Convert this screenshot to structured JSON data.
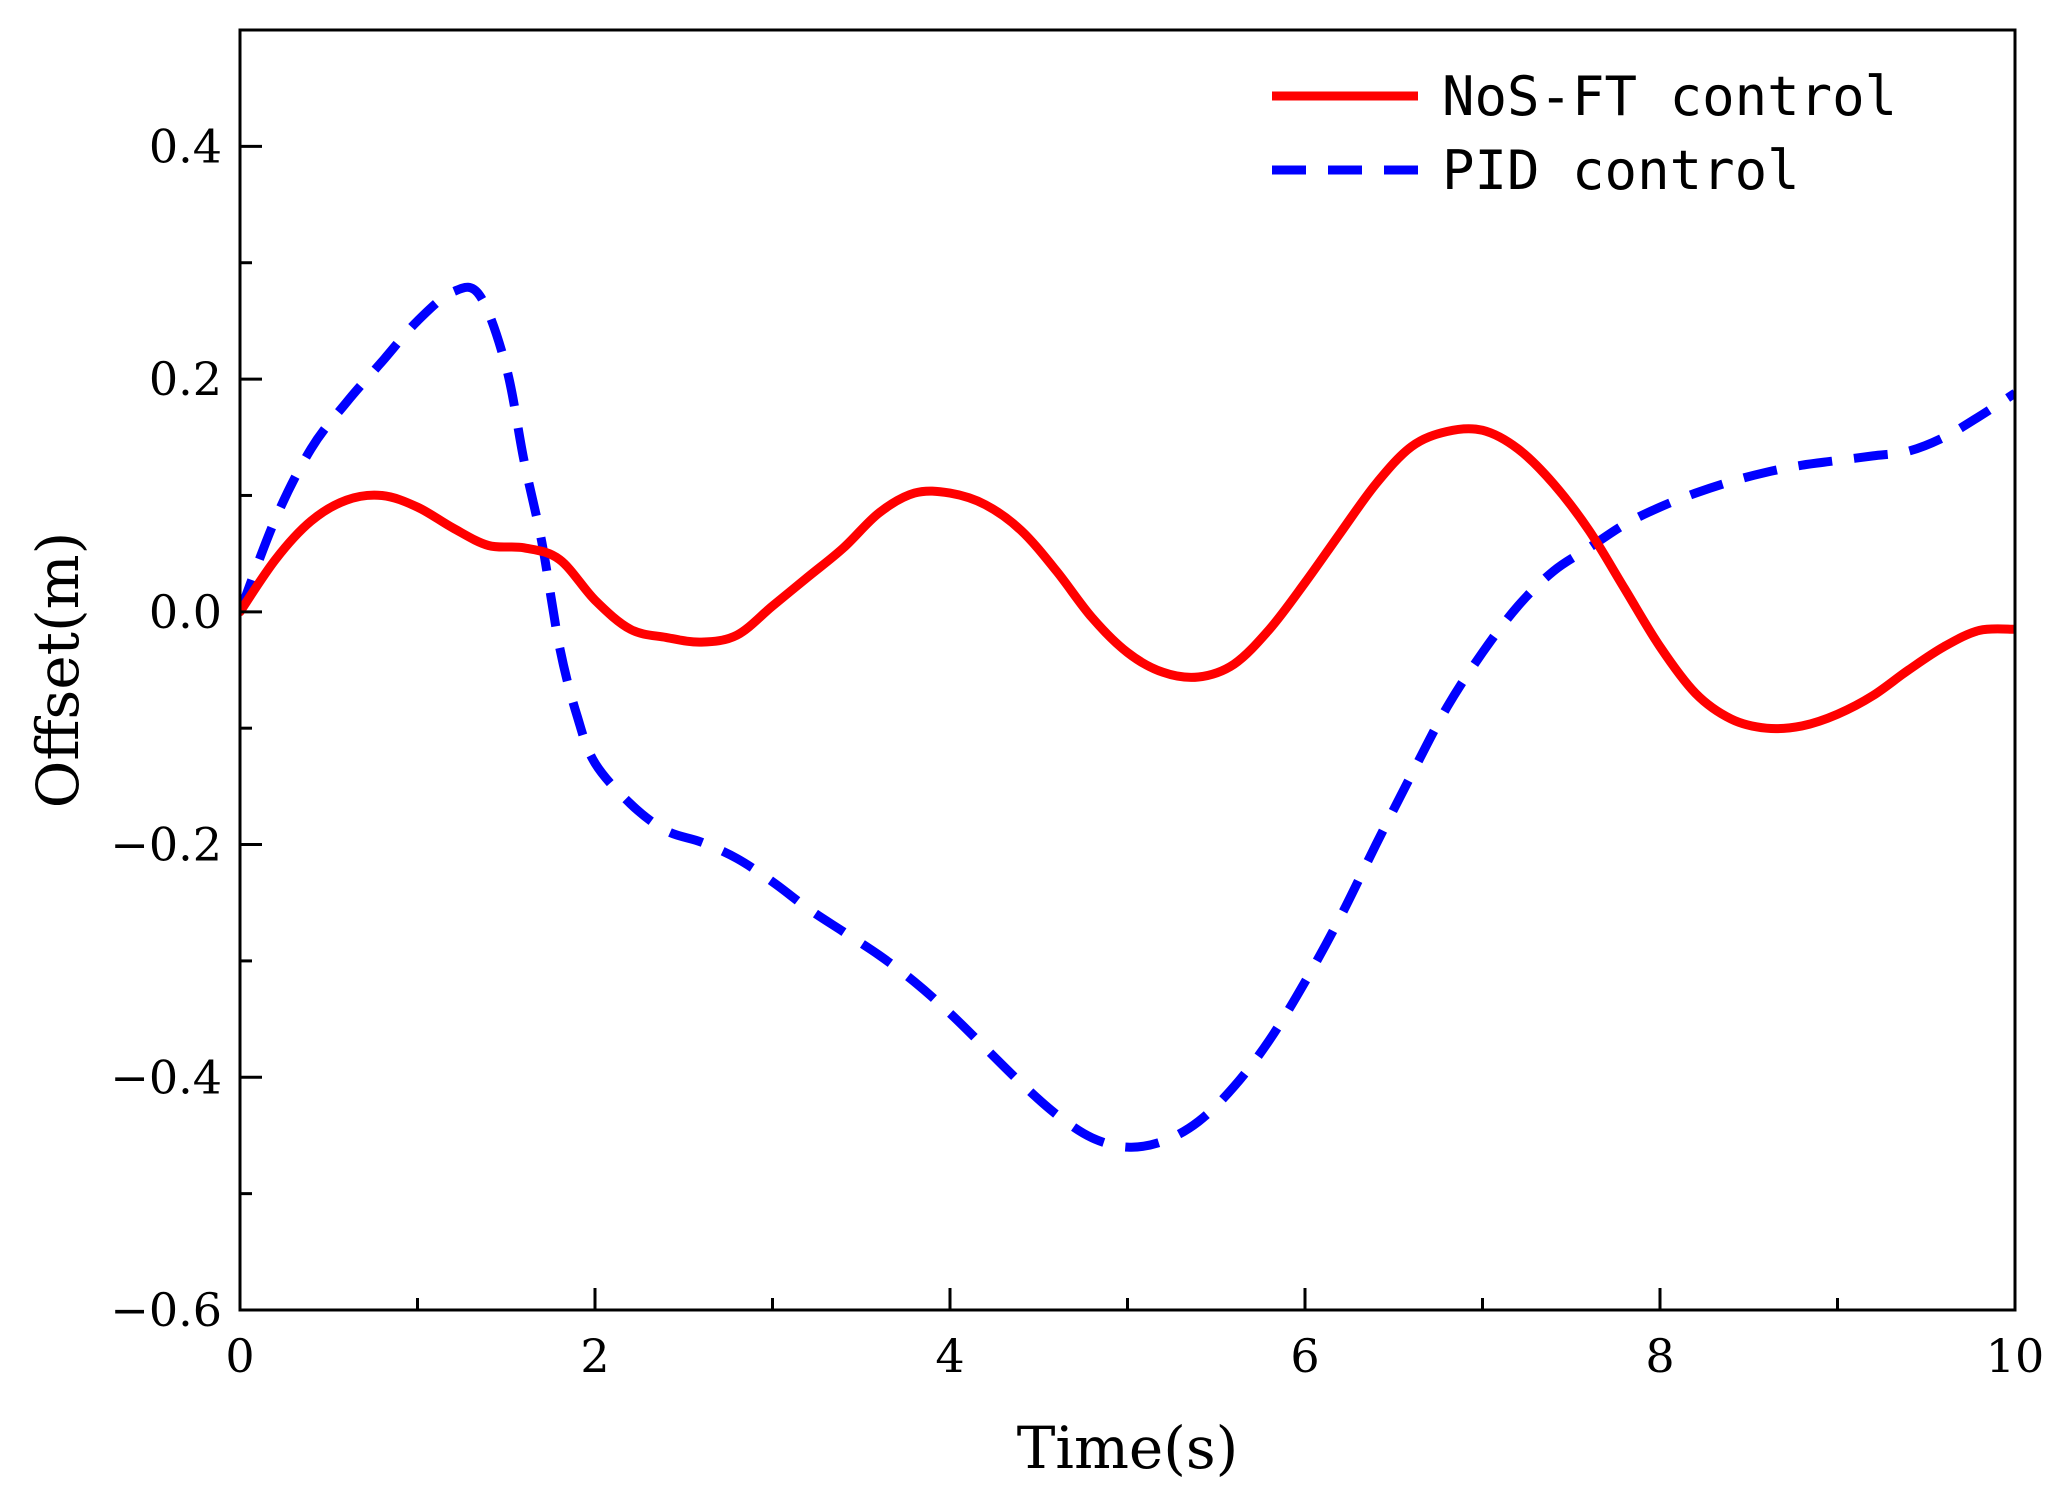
{
  "chart_data": {
    "type": "line",
    "title": "",
    "xlabel": "Time(s)",
    "ylabel": "Offset(m)",
    "xlim": [
      0,
      10
    ],
    "ylim": [
      -0.6,
      0.5
    ],
    "xticks": [
      0,
      2,
      4,
      6,
      8,
      10
    ],
    "xtick_labels": [
      "0",
      "2",
      "4",
      "6",
      "8",
      "10"
    ],
    "yticks": [
      -0.6,
      -0.4,
      -0.2,
      0.0,
      0.2,
      0.4
    ],
    "ytick_labels": [
      "−0.6",
      "−0.4",
      "−0.2",
      "0.0",
      "0.2",
      "0.4"
    ],
    "grid": false,
    "legend_position": "top-right",
    "series": [
      {
        "name": "NoS-FT control",
        "color": "#ff0000",
        "style": "solid",
        "x": [
          0,
          0.2,
          0.4,
          0.6,
          0.8,
          1.0,
          1.2,
          1.4,
          1.6,
          1.8,
          2.0,
          2.2,
          2.4,
          2.6,
          2.8,
          3.0,
          3.2,
          3.4,
          3.6,
          3.8,
          4.0,
          4.2,
          4.4,
          4.6,
          4.8,
          5.0,
          5.2,
          5.4,
          5.6,
          5.8,
          6.0,
          6.2,
          6.4,
          6.6,
          6.8,
          7.0,
          7.2,
          7.4,
          7.6,
          7.8,
          8.0,
          8.2,
          8.4,
          8.6,
          8.8,
          9.0,
          9.2,
          9.4,
          9.6,
          9.8,
          10.0
        ],
        "y": [
          0.0,
          0.045,
          0.078,
          0.096,
          0.1,
          0.09,
          0.072,
          0.057,
          0.055,
          0.045,
          0.01,
          -0.015,
          -0.022,
          -0.026,
          -0.02,
          0.005,
          0.03,
          0.055,
          0.085,
          0.102,
          0.102,
          0.092,
          0.07,
          0.035,
          -0.005,
          -0.035,
          -0.052,
          -0.056,
          -0.045,
          -0.015,
          0.025,
          0.068,
          0.11,
          0.142,
          0.155,
          0.156,
          0.14,
          0.11,
          0.07,
          0.02,
          -0.03,
          -0.07,
          -0.092,
          -0.1,
          -0.098,
          -0.088,
          -0.072,
          -0.05,
          -0.03,
          -0.016,
          -0.015
        ]
      },
      {
        "name": "PID control",
        "color": "#0000ff",
        "style": "dashed",
        "x": [
          0,
          0.2,
          0.4,
          0.6,
          0.8,
          1.0,
          1.2,
          1.35,
          1.5,
          1.6,
          1.7,
          1.8,
          1.9,
          2.0,
          2.2,
          2.4,
          2.6,
          2.8,
          3.0,
          3.2,
          3.4,
          3.6,
          3.8,
          4.0,
          4.2,
          4.4,
          4.6,
          4.8,
          5.0,
          5.2,
          5.4,
          5.6,
          5.8,
          6.0,
          6.2,
          6.4,
          6.6,
          6.8,
          7.0,
          7.2,
          7.4,
          7.6,
          7.8,
          8.0,
          8.2,
          8.4,
          8.6,
          8.8,
          9.0,
          9.2,
          9.4,
          9.6,
          9.8,
          10.0
        ],
        "y": [
          0.0,
          0.08,
          0.14,
          0.18,
          0.215,
          0.25,
          0.275,
          0.272,
          0.21,
          0.13,
          0.06,
          -0.03,
          -0.09,
          -0.13,
          -0.165,
          -0.188,
          -0.198,
          -0.212,
          -0.232,
          -0.255,
          -0.275,
          -0.295,
          -0.318,
          -0.345,
          -0.375,
          -0.405,
          -0.432,
          -0.452,
          -0.46,
          -0.455,
          -0.438,
          -0.408,
          -0.368,
          -0.318,
          -0.262,
          -0.2,
          -0.14,
          -0.082,
          -0.035,
          0.005,
          0.035,
          0.055,
          0.075,
          0.09,
          0.102,
          0.112,
          0.12,
          0.126,
          0.13,
          0.134,
          0.138,
          0.15,
          0.168,
          0.188
        ]
      }
    ]
  }
}
